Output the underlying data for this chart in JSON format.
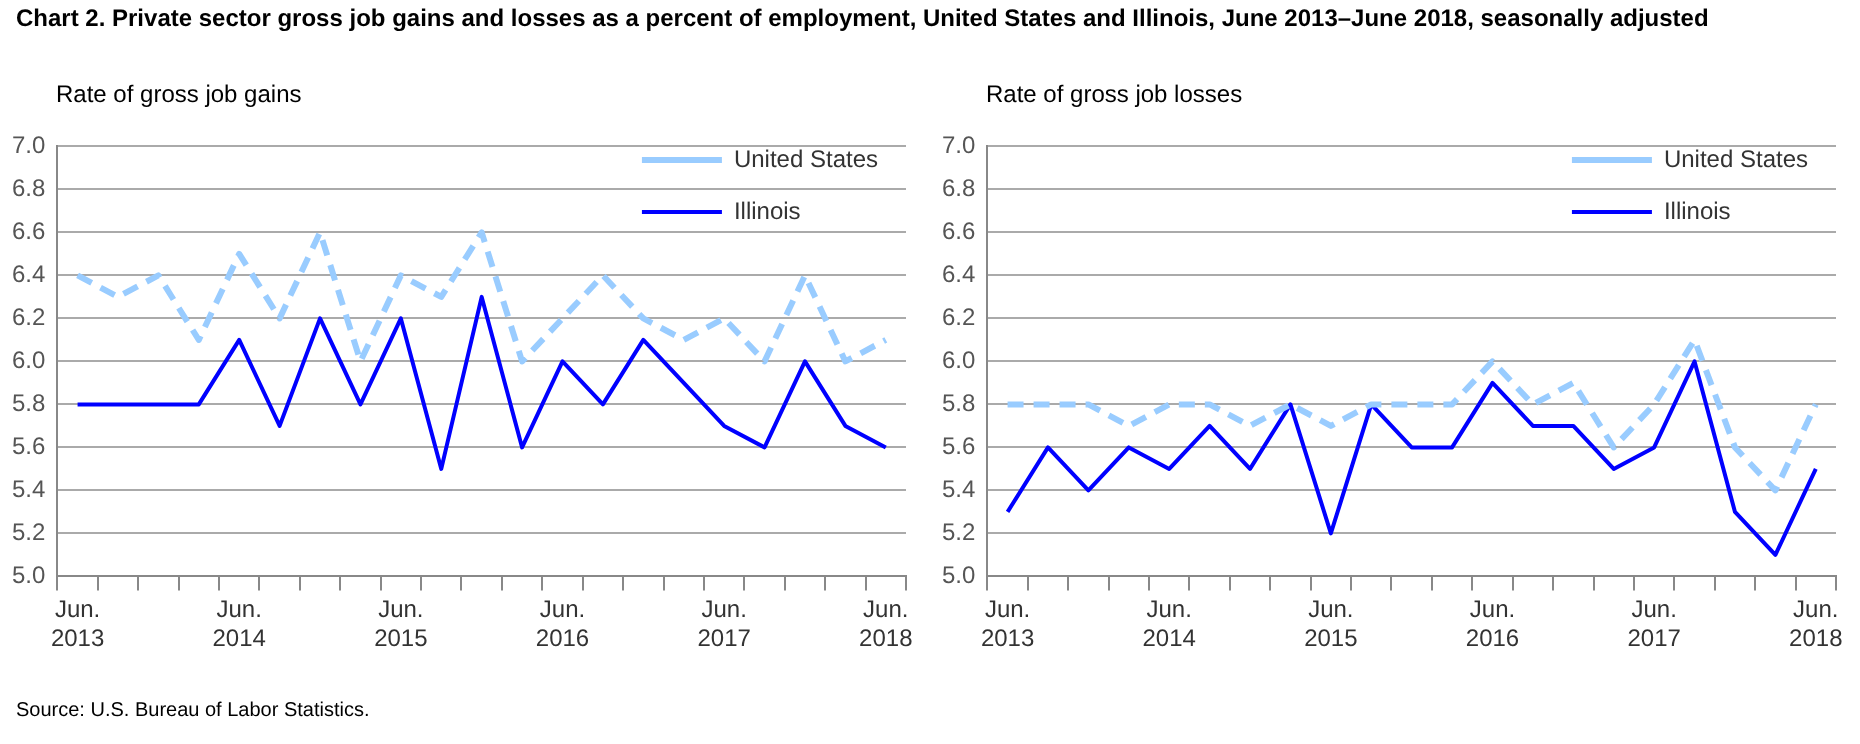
{
  "chart_data": [
    {
      "type": "line",
      "title": "Chart 2. Private sector gross  job gains and losses  as a percent of employment, United States and Illinois, June 2013–June 2018, seasonally adjusted",
      "ylabel": "Rate of gross job gains",
      "annotations": [
        "Source: U.S. Bureau of Labor Statistics."
      ],
      "categories": [
        "Jun. 2013",
        null,
        null,
        null,
        "Jun. 2014",
        null,
        null,
        null,
        "Jun. 2015",
        null,
        null,
        null,
        "Jun. 2016",
        null,
        null,
        null,
        "Jun. 2017",
        null,
        null,
        null,
        "Jun. 2018"
      ],
      "series": [
        {
          "name": "United States",
          "color": "#99ccff",
          "line_style": "dashed",
          "values": [
            6.4,
            6.3,
            6.4,
            6.1,
            6.5,
            6.2,
            6.6,
            6.0,
            6.4,
            6.3,
            6.6,
            6.0,
            6.2,
            6.4,
            6.2,
            6.1,
            6.2,
            6.0,
            6.4,
            6.0,
            6.1
          ]
        },
        {
          "name": "Illinois",
          "color": "#0000ff",
          "line_style": "solid",
          "values": [
            5.8,
            5.8,
            5.8,
            5.8,
            6.1,
            5.7,
            6.2,
            5.8,
            6.2,
            5.5,
            6.3,
            5.6,
            6.0,
            5.8,
            6.1,
            5.9,
            5.7,
            5.6,
            6.0,
            5.7,
            5.6
          ]
        }
      ],
      "ylim": [
        5,
        7
      ],
      "yticks": [
        {
          "value": 5,
          "label": "5.0"
        },
        {
          "value": 5.2,
          "label": "5.2"
        },
        {
          "value": 5.4,
          "label": "5.4"
        },
        {
          "value": 5.6,
          "label": "5.6"
        },
        {
          "value": 5.8,
          "label": "5.8"
        },
        {
          "value": 6,
          "label": "6.0"
        },
        {
          "value": 6.2,
          "label": "6.2"
        },
        {
          "value": 6.4,
          "label": "6.4"
        },
        {
          "value": 6.6,
          "label": "6.6"
        },
        {
          "value": 6.8,
          "label": "6.8"
        },
        {
          "value": 7,
          "label": "7.0"
        }
      ],
      "grid": "y",
      "legend": "top right",
      "marker": "none"
    },
    {
      "type": "line",
      "ylabel": "Rate of gross job losses",
      "categories": [
        "Jun. 2013",
        null,
        null,
        null,
        "Jun. 2014",
        null,
        null,
        null,
        "Jun. 2015",
        null,
        null,
        null,
        "Jun. 2016",
        null,
        null,
        null,
        "Jun. 2017",
        null,
        null,
        null,
        "Jun. 2018"
      ],
      "series": [
        {
          "name": "United States",
          "color": "#99ccff",
          "line_style": "dashed",
          "values": [
            5.8,
            5.8,
            5.8,
            5.7,
            5.8,
            5.8,
            5.7,
            5.8,
            5.7,
            5.8,
            5.8,
            5.8,
            6.0,
            5.8,
            5.9,
            5.6,
            5.8,
            6.1,
            5.6,
            5.4,
            5.8
          ]
        },
        {
          "name": "Illinois",
          "color": "#0000ff",
          "line_style": "solid",
          "values": [
            5.3,
            5.6,
            5.4,
            5.6,
            5.5,
            5.7,
            5.5,
            5.8,
            5.2,
            5.8,
            5.6,
            5.6,
            5.9,
            5.7,
            5.7,
            5.5,
            5.6,
            6.0,
            5.3,
            5.1,
            5.5
          ]
        }
      ],
      "ylim": [
        5,
        7
      ],
      "yticks": [
        {
          "value": 5,
          "label": "5.0"
        },
        {
          "value": 5.2,
          "label": "5.2"
        },
        {
          "value": 5.4,
          "label": "5.4"
        },
        {
          "value": 5.6,
          "label": "5.6"
        },
        {
          "value": 5.8,
          "label": "5.8"
        },
        {
          "value": 6,
          "label": "6.0"
        },
        {
          "value": 6.2,
          "label": "6.2"
        },
        {
          "value": 6.4,
          "label": "6.4"
        },
        {
          "value": 6.6,
          "label": "6.6"
        },
        {
          "value": 6.8,
          "label": "6.8"
        },
        {
          "value": 7,
          "label": "7.0"
        }
      ],
      "grid": "y",
      "legend": "top right",
      "marker": "none"
    }
  ]
}
